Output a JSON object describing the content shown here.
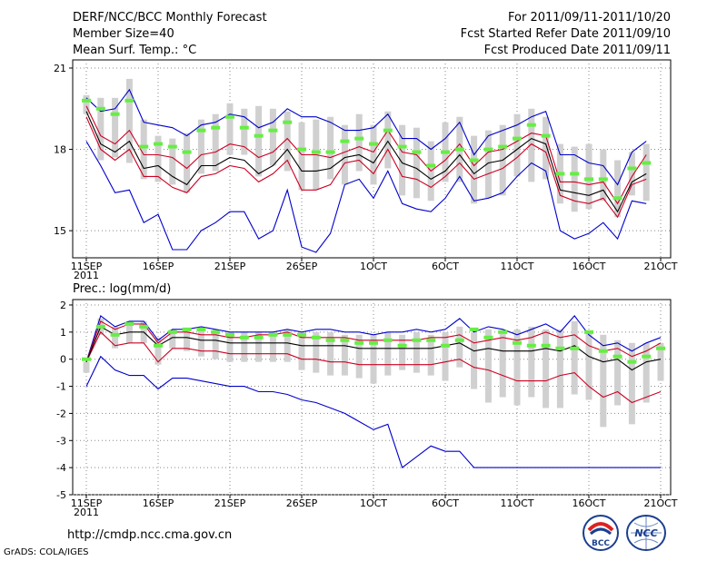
{
  "header": {
    "title": "DERF/NCC/BCC Monthly Forecast",
    "member_size": "Member Size=40",
    "period": "For 2011/09/11-2011/10/20",
    "started": "Fcst Started Refer Date 2011/09/10",
    "produced": "Fcst Produced Date 2011/09/11"
  },
  "footer": {
    "url": "http://cmdp.ncc.cma.gov.cn",
    "credit": "GrADS: COLA/IGES",
    "logo_bcc": "BCC",
    "logo_ncc": "NCC"
  },
  "colors": {
    "extreme": "#0000cc",
    "percentile": "#cc0022",
    "mean": "#000000",
    "box": "#d0d0d0",
    "marker": "#66ee44"
  },
  "chart_data": [
    {
      "type": "line",
      "title": "Mean Surf. Temp.: °C",
      "x_ticks": [
        "11SEP",
        "16SEP",
        "21SEP",
        "26SEP",
        "1OCT",
        "6OCT",
        "11OCT",
        "16OCT",
        "21OCT"
      ],
      "x_tick_days": [
        0,
        5,
        10,
        15,
        20,
        25,
        30,
        35,
        40
      ],
      "x_year_label": "2011",
      "ylim": [
        14,
        21.3
      ],
      "yticks": [
        15,
        18,
        21
      ],
      "series": [
        {
          "name": "max",
          "role": "extreme",
          "values": [
            19.9,
            19.4,
            19.5,
            20.2,
            19.0,
            18.9,
            18.8,
            18.5,
            18.9,
            19.0,
            19.3,
            19.2,
            18.8,
            19.0,
            19.5,
            19.2,
            19.2,
            19.0,
            18.7,
            18.7,
            18.8,
            19.3,
            18.4,
            18.4,
            18.0,
            18.4,
            19.0,
            17.8,
            18.5,
            18.7,
            18.9,
            19.2,
            19.4,
            17.8,
            17.8,
            17.5,
            17.4,
            16.7,
            17.9,
            18.3
          ]
        },
        {
          "name": "p90",
          "role": "percentile",
          "values": [
            19.6,
            18.5,
            18.2,
            18.7,
            17.8,
            17.8,
            17.7,
            17.3,
            17.8,
            17.9,
            18.2,
            18.1,
            17.7,
            17.9,
            18.4,
            17.8,
            17.8,
            17.7,
            17.9,
            18.1,
            17.9,
            18.7,
            17.9,
            17.8,
            17.2,
            17.6,
            18.2,
            17.4,
            17.9,
            18.0,
            18.3,
            18.6,
            18.5,
            16.8,
            16.8,
            16.7,
            16.8,
            16.0,
            17.0,
            17.8
          ]
        },
        {
          "name": "mean",
          "role": "mean",
          "values": [
            19.4,
            18.2,
            17.9,
            18.3,
            17.3,
            17.4,
            17.0,
            16.7,
            17.4,
            17.4,
            17.7,
            17.6,
            17.1,
            17.4,
            18.0,
            17.2,
            17.2,
            17.3,
            17.7,
            17.8,
            17.5,
            18.3,
            17.5,
            17.3,
            16.9,
            17.2,
            17.8,
            17.1,
            17.5,
            17.6,
            18.0,
            18.4,
            18.2,
            16.5,
            16.4,
            16.3,
            16.5,
            15.7,
            16.8,
            17.1
          ]
        },
        {
          "name": "p10",
          "role": "percentile",
          "values": [
            19.2,
            18.0,
            17.6,
            18.0,
            17.0,
            17.0,
            16.6,
            16.4,
            17.0,
            17.1,
            17.4,
            17.3,
            16.8,
            17.1,
            17.6,
            16.5,
            16.5,
            16.7,
            17.5,
            17.6,
            17.1,
            18.0,
            17.0,
            16.9,
            16.6,
            17.0,
            17.5,
            16.9,
            17.1,
            17.3,
            17.7,
            18.2,
            17.9,
            16.3,
            16.1,
            16.0,
            16.2,
            15.5,
            16.7,
            16.9
          ]
        },
        {
          "name": "min",
          "role": "extreme",
          "values": [
            18.3,
            17.4,
            16.4,
            16.5,
            15.3,
            15.6,
            14.3,
            14.3,
            15.0,
            15.3,
            15.7,
            15.7,
            14.7,
            15.0,
            16.5,
            14.4,
            14.2,
            14.9,
            16.7,
            16.9,
            16.2,
            17.2,
            16.0,
            15.8,
            15.7,
            16.2,
            17.0,
            16.1,
            16.2,
            16.4,
            17.0,
            17.5,
            17.2,
            15.0,
            14.7,
            14.9,
            15.3,
            14.7,
            16.1,
            16.0
          ]
        },
        {
          "name": "box_high",
          "role": "box",
          "values": [
            20.0,
            19.9,
            19.9,
            20.6,
            19.1,
            18.5,
            18.4,
            18.6,
            19.1,
            19.3,
            19.7,
            19.5,
            19.6,
            19.5,
            19.4,
            19.0,
            19.1,
            19.2,
            18.9,
            19.3,
            18.9,
            19.4,
            18.9,
            18.8,
            18.3,
            19.0,
            19.2,
            18.5,
            18.7,
            18.9,
            19.3,
            19.5,
            19.2,
            18.2,
            18.1,
            18.2,
            18.0,
            17.6,
            17.9,
            18.2
          ]
        },
        {
          "name": "box_low",
          "role": "box",
          "values": [
            19.3,
            17.6,
            17.7,
            17.5,
            16.9,
            16.8,
            16.7,
            16.4,
            17.1,
            17.2,
            17.8,
            17.8,
            17.0,
            17.4,
            17.2,
            16.5,
            16.5,
            16.9,
            16.7,
            17.2,
            16.7,
            17.3,
            16.3,
            16.2,
            16.1,
            16.8,
            16.8,
            16.0,
            16.2,
            16.3,
            17.0,
            16.8,
            16.9,
            16.0,
            15.7,
            15.8,
            16.1,
            15.5,
            16.3,
            16.1
          ]
        },
        {
          "name": "marker",
          "role": "marker",
          "values": [
            19.8,
            19.5,
            19.3,
            19.8,
            18.1,
            18.2,
            18.1,
            17.9,
            18.7,
            18.8,
            19.2,
            18.8,
            18.5,
            18.7,
            19.0,
            18.0,
            17.9,
            17.9,
            18.3,
            18.4,
            18.2,
            18.7,
            18.1,
            17.9,
            17.4,
            17.9,
            18.0,
            17.6,
            18.0,
            18.1,
            18.4,
            18.9,
            18.5,
            17.1,
            17.1,
            16.9,
            16.9,
            16.2,
            17.3,
            17.5
          ]
        }
      ]
    },
    {
      "type": "line",
      "title": "Prec.: log(mm/d)",
      "x_ticks": [
        "11SEP",
        "16SEP",
        "21SEP",
        "26SEP",
        "1OCT",
        "6OCT",
        "11OCT",
        "16OCT",
        "21OCT"
      ],
      "x_tick_days": [
        0,
        5,
        10,
        15,
        20,
        25,
        30,
        35,
        40
      ],
      "x_year_label": "2011",
      "ylim": [
        -5,
        2.2
      ],
      "yticks": [
        -5,
        -4,
        -3,
        -2,
        -1,
        0,
        1,
        2
      ],
      "series": [
        {
          "name": "max",
          "role": "extreme",
          "values": [
            -0.1,
            1.6,
            1.2,
            1.4,
            1.4,
            0.7,
            1.1,
            1.1,
            1.2,
            1.1,
            1.0,
            1.0,
            1.0,
            1.0,
            1.1,
            1.0,
            1.1,
            1.1,
            1.0,
            1.0,
            0.9,
            1.0,
            1.0,
            1.1,
            1.0,
            1.1,
            1.5,
            1.0,
            1.2,
            1.1,
            0.9,
            1.1,
            1.3,
            1.0,
            1.6,
            0.9,
            0.5,
            0.6,
            0.3,
            0.6,
            0.8
          ]
        },
        {
          "name": "p90",
          "role": "percentile",
          "values": [
            -0.1,
            1.4,
            1.1,
            1.3,
            1.3,
            0.6,
            1.0,
            1.0,
            0.9,
            0.9,
            0.8,
            0.8,
            0.9,
            0.9,
            1.0,
            0.8,
            0.8,
            0.8,
            0.8,
            0.7,
            0.7,
            0.7,
            0.7,
            0.7,
            0.8,
            0.8,
            0.9,
            0.6,
            0.7,
            0.8,
            0.7,
            0.8,
            1.0,
            0.8,
            0.9,
            0.5,
            0.3,
            0.4,
            0.1,
            0.3,
            0.6
          ]
        },
        {
          "name": "mean",
          "role": "mean",
          "values": [
            -0.1,
            1.2,
            0.9,
            1.0,
            1.0,
            0.5,
            0.8,
            0.8,
            0.7,
            0.7,
            0.6,
            0.6,
            0.6,
            0.6,
            0.6,
            0.5,
            0.5,
            0.5,
            0.5,
            0.4,
            0.4,
            0.4,
            0.4,
            0.4,
            0.4,
            0.5,
            0.6,
            0.3,
            0.4,
            0.3,
            0.3,
            0.3,
            0.4,
            0.3,
            0.5,
            0.1,
            -0.1,
            0.0,
            -0.4,
            -0.1,
            0.0
          ]
        },
        {
          "name": "p10",
          "role": "percentile",
          "values": [
            -0.1,
            1.0,
            0.5,
            0.6,
            0.6,
            -0.1,
            0.4,
            0.4,
            0.3,
            0.3,
            0.2,
            0.2,
            0.2,
            0.2,
            0.2,
            0.0,
            0.0,
            -0.1,
            -0.1,
            -0.2,
            -0.2,
            -0.2,
            -0.2,
            -0.2,
            -0.2,
            -0.1,
            0.0,
            -0.3,
            -0.4,
            -0.6,
            -0.8,
            -0.8,
            -0.8,
            -0.6,
            -0.5,
            -1.0,
            -1.4,
            -1.2,
            -1.6,
            -1.4,
            -1.2
          ]
        },
        {
          "name": "min",
          "role": "extreme",
          "values": [
            -1.0,
            0.1,
            -0.4,
            -0.6,
            -0.6,
            -1.1,
            -0.7,
            -0.7,
            -0.8,
            -0.9,
            -1.0,
            -1.0,
            -1.2,
            -1.2,
            -1.3,
            -1.5,
            -1.6,
            -1.8,
            -2.0,
            -2.3,
            -2.6,
            -2.4,
            -4.0,
            -3.6,
            -3.2,
            -3.4,
            -3.4,
            -4.0,
            -4.0,
            -4.0,
            -4.0,
            -4.0,
            -4.0,
            -4.0,
            -4.0,
            -4.0,
            -4.0,
            -4.0,
            -4.0,
            -4.0,
            -4.0
          ]
        },
        {
          "name": "box_high",
          "role": "box",
          "values": [
            -0.1,
            1.5,
            1.2,
            1.4,
            1.4,
            0.8,
            1.1,
            1.1,
            1.1,
            1.1,
            1.0,
            1.0,
            1.0,
            1.0,
            1.1,
            1.0,
            1.0,
            1.0,
            0.9,
            0.9,
            0.9,
            1.0,
            0.9,
            1.0,
            0.9,
            1.0,
            1.2,
            1.0,
            1.1,
            1.0,
            1.1,
            1.2,
            1.1,
            1.1,
            1.4,
            1.0,
            0.9,
            0.7,
            0.6,
            0.6,
            0.6
          ]
        },
        {
          "name": "box_low",
          "role": "box",
          "values": [
            -0.5,
            0.9,
            0.4,
            0.6,
            0.6,
            -0.2,
            0.4,
            0.3,
            0.1,
            0.0,
            -0.1,
            -0.1,
            -0.1,
            -0.1,
            -0.1,
            -0.4,
            -0.5,
            -0.6,
            -0.6,
            -0.7,
            -0.9,
            -0.6,
            -0.4,
            -0.5,
            -0.6,
            -0.8,
            -0.3,
            -1.1,
            -1.6,
            -1.4,
            -1.7,
            -1.4,
            -1.8,
            -1.8,
            -1.3,
            -1.5,
            -2.5,
            -1.7,
            -2.4,
            -1.6,
            -0.8
          ]
        },
        {
          "name": "marker",
          "role": "marker",
          "values": [
            0.0,
            1.2,
            0.9,
            1.3,
            1.2,
            0.5,
            1.0,
            1.1,
            1.1,
            1.0,
            0.9,
            0.8,
            0.8,
            0.9,
            0.9,
            0.9,
            0.8,
            0.7,
            0.7,
            0.6,
            0.6,
            0.7,
            0.5,
            0.7,
            0.7,
            0.5,
            0.7,
            1.1,
            0.8,
            1.0,
            0.6,
            0.5,
            0.5,
            0.4,
            0.4,
            1.0,
            0.3,
            0.1,
            -0.1,
            0.1,
            0.4
          ]
        }
      ]
    }
  ]
}
